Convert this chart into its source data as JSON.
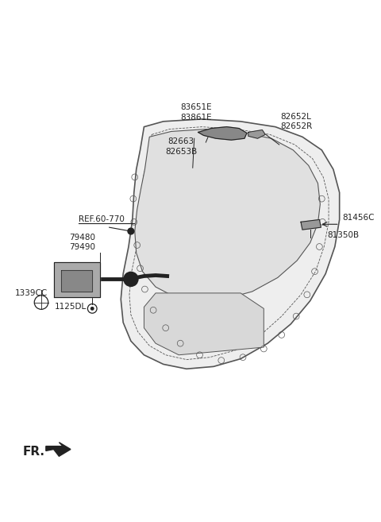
{
  "bg_color": "#ffffff",
  "line_color": "#555555",
  "dark_color": "#222222",
  "fig_width": 4.8,
  "fig_height": 6.57,
  "dpi": 100,
  "label_83651E": "83651E\n83861E",
  "label_82652": "82652L\n82652R",
  "label_82663": "82663\n82653B",
  "label_ref": "REF.60-770",
  "label_79480": "79480\n79490",
  "label_1339CC": "1339CC",
  "label_1125DL": "1125DL",
  "label_81456C": "81456C",
  "label_81350B": "81350B",
  "label_fr": "FR."
}
